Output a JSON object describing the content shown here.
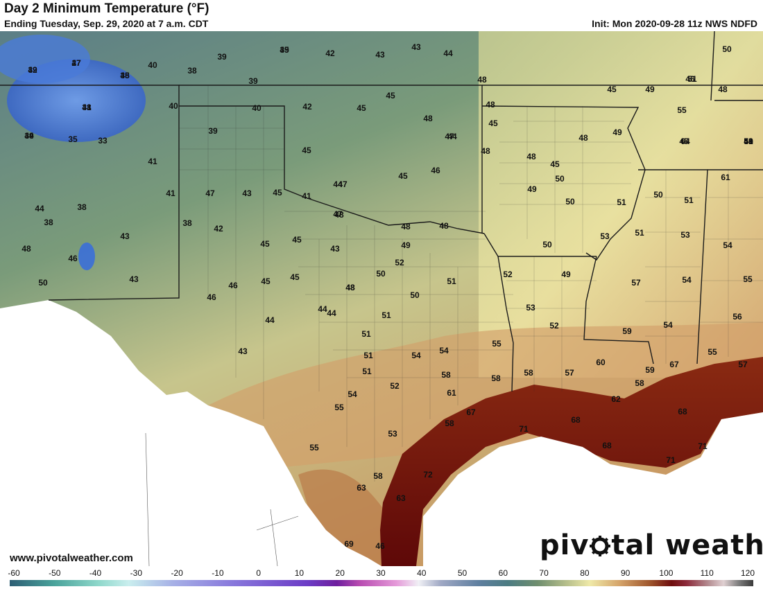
{
  "header": {
    "title": "Day 2 Minimum Temperature (°F)",
    "subtitle": "Ending Tuesday, Sep. 29, 2020 at 7 a.m. CDT",
    "init": "Init: Mon 2020-09-28 11z NWS NDFD"
  },
  "footer": {
    "website": "www.pivotalweather.com",
    "brand_left": "piv",
    "brand_right": "tal weather"
  },
  "scale": {
    "ticks": [
      "-60",
      "-50",
      "-40",
      "-30",
      "-20",
      "-10",
      "0",
      "10",
      "20",
      "30",
      "40",
      "50",
      "60",
      "70",
      "80",
      "90",
      "100",
      "110",
      "120"
    ]
  },
  "map": {
    "values": [
      "32",
      "27",
      "35",
      "31",
      "34",
      "35",
      "33",
      "40",
      "44",
      "38",
      "48",
      "46",
      "50",
      "43",
      "43",
      "38",
      "39",
      "40",
      "41",
      "39",
      "41",
      "38",
      "47",
      "43",
      "45",
      "38",
      "42",
      "45",
      "45",
      "43",
      "46",
      "45",
      "45",
      "46",
      "44",
      "44",
      "43",
      "48",
      "39",
      "39",
      "40",
      "42",
      "45",
      "45",
      "43",
      "42",
      "43",
      "44",
      "48",
      "45",
      "45",
      "48",
      "47",
      "46",
      "45",
      "44",
      "47",
      "48",
      "48",
      "49",
      "52",
      "50",
      "51",
      "50",
      "48",
      "51",
      "51",
      "51",
      "51",
      "55",
      "54",
      "52",
      "55",
      "53",
      "54",
      "54",
      "58",
      "61",
      "58",
      "67",
      "55",
      "58",
      "58",
      "57",
      "60",
      "62",
      "58",
      "59",
      "67",
      "68",
      "71",
      "68",
      "68",
      "71",
      "71",
      "72",
      "63",
      "58",
      "63",
      "69",
      "46",
      "44",
      "44",
      "41",
      "45",
      "48",
      "48",
      "47",
      "48",
      "48",
      "45",
      "48",
      "49",
      "49",
      "50",
      "50",
      "51",
      "51",
      "50",
      "50",
      "51",
      "53",
      "53",
      "52",
      "53",
      "49",
      "52",
      "54",
      "54",
      "55",
      "56",
      "57",
      "59",
      "54",
      "55",
      "57",
      "61",
      "64",
      "55",
      "51",
      "50",
      "49",
      "48",
      "46",
      "49",
      "45",
      "51",
      "45",
      "49",
      "50",
      "48",
      "53",
      "50",
      "46",
      "49",
      "47",
      "48",
      "48",
      "49"
    ],
    "colors": {
      "cold": "#3b6fd8",
      "cool": "#6d9283",
      "mild": "#b6bb88",
      "warm": "#efe6a2",
      "hot": "#a05a32",
      "very_hot": "#6e0d0d",
      "mexico": "#ffffff"
    }
  }
}
